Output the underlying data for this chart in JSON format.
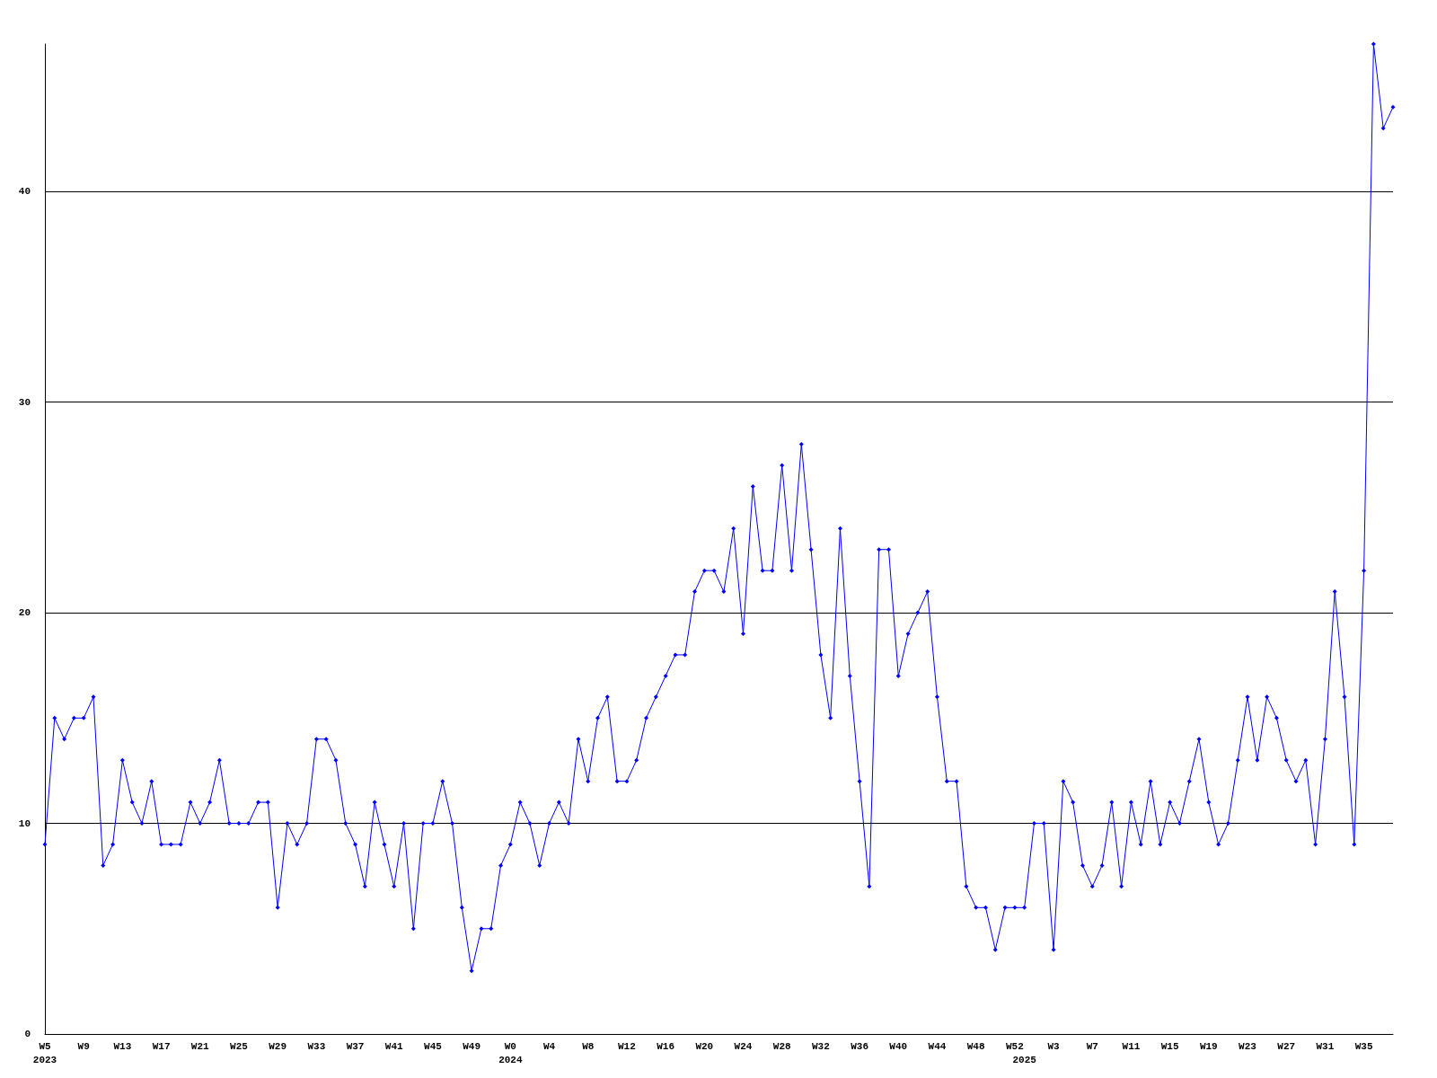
{
  "chart_data": {
    "type": "line",
    "categories": [
      "W5\n2023",
      null,
      null,
      null,
      "W9",
      null,
      null,
      null,
      "W13",
      null,
      null,
      null,
      "W17",
      null,
      null,
      null,
      "W21",
      null,
      null,
      null,
      "W25",
      null,
      null,
      null,
      "W29",
      null,
      null,
      null,
      "W33",
      null,
      null,
      null,
      "W37",
      null,
      null,
      null,
      "W41",
      null,
      null,
      null,
      "W45",
      null,
      null,
      null,
      "W49",
      null,
      null,
      null,
      "W0\n2024",
      null,
      null,
      null,
      "W4",
      null,
      null,
      null,
      "W8",
      null,
      null,
      null,
      "W12",
      null,
      null,
      null,
      "W16",
      null,
      null,
      null,
      "W20",
      null,
      null,
      null,
      "W24",
      null,
      null,
      null,
      "W28",
      null,
      null,
      null,
      "W32",
      null,
      null,
      null,
      "W36",
      null,
      null,
      null,
      "W40",
      null,
      null,
      null,
      "W44",
      null,
      null,
      null,
      "W48",
      null,
      null,
      null,
      "W52",
      "\n2025",
      null,
      null,
      "W3",
      null,
      null,
      null,
      "W7",
      null,
      null,
      null,
      "W11",
      null,
      null,
      null,
      "W15",
      null,
      null,
      null,
      "W19",
      null,
      null,
      null,
      "W23",
      null,
      null,
      null,
      "W27",
      null,
      null,
      null,
      "W31",
      null,
      null,
      null,
      "W35",
      null,
      null,
      null
    ],
    "series": [
      {
        "color": "#0000ff",
        "values": [
          9,
          15,
          14,
          15,
          15,
          16,
          8,
          9,
          13,
          11,
          10,
          12,
          9,
          9,
          9,
          11,
          10,
          11,
          13,
          10,
          10,
          10,
          11,
          11,
          6,
          10,
          9,
          10,
          14,
          14,
          13,
          10,
          9,
          7,
          11,
          9,
          7,
          10,
          5,
          10,
          10,
          12,
          10,
          6,
          3,
          5,
          5,
          8,
          9,
          11,
          10,
          8,
          10,
          11,
          10,
          14,
          12,
          15,
          16,
          12,
          12,
          13,
          15,
          16,
          17,
          18,
          18,
          21,
          22,
          22,
          21,
          24,
          19,
          26,
          22,
          22,
          27,
          22,
          28,
          23,
          18,
          15,
          24,
          17,
          12,
          7,
          23,
          23,
          17,
          19,
          20,
          21,
          16,
          12,
          12,
          7,
          6,
          6,
          4,
          6,
          6,
          6,
          10,
          10,
          4,
          12,
          11,
          8,
          7,
          8,
          11,
          7,
          11,
          9,
          12,
          9,
          11,
          10,
          12,
          14,
          11,
          9,
          10,
          13,
          16,
          13,
          16,
          15,
          13,
          12,
          13,
          9,
          14,
          21,
          16,
          9,
          22,
          47,
          43,
          44
        ]
      }
    ],
    "ylim": [
      0,
      47
    ],
    "yticks": [
      0,
      10,
      20,
      30,
      40
    ],
    "grid": "y",
    "marker": "diamond",
    "line_style": "solid"
  }
}
